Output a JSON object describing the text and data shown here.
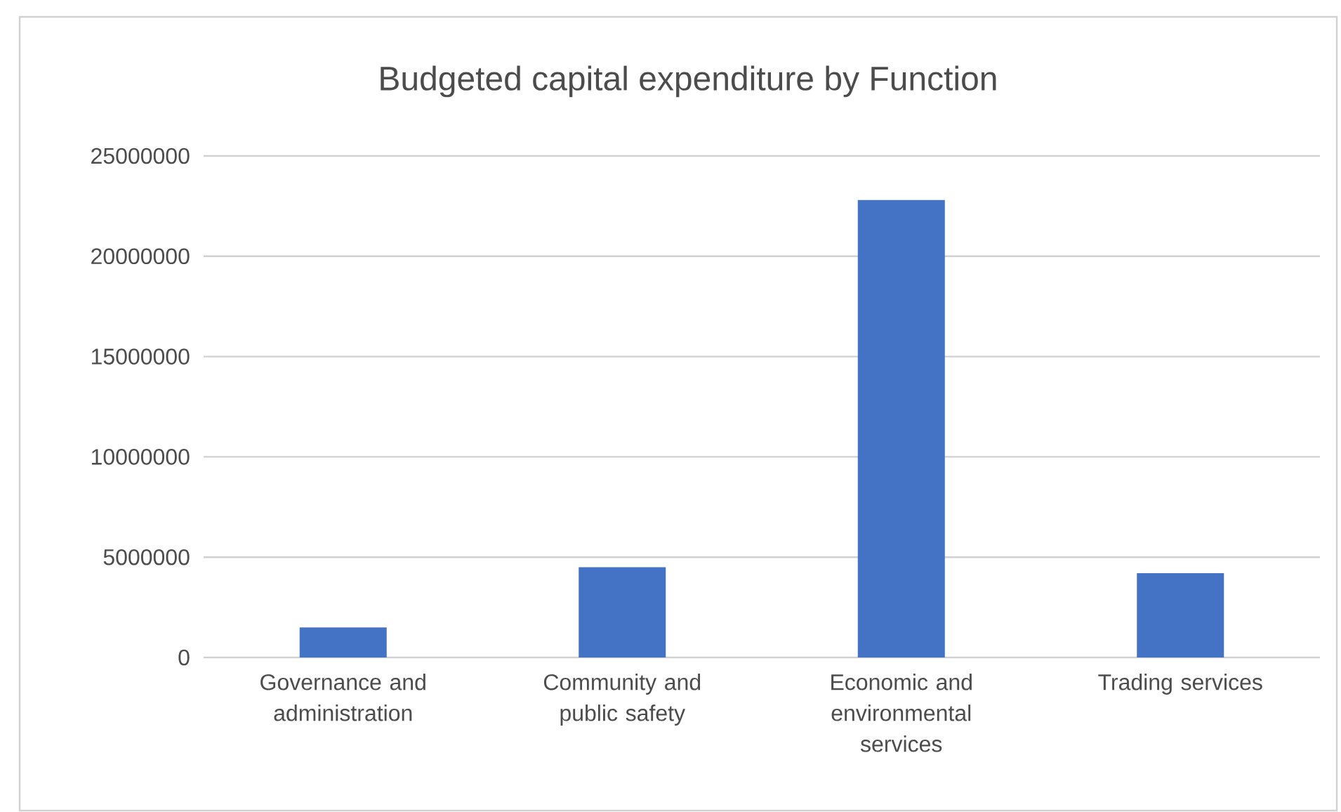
{
  "chart_data": {
    "type": "bar",
    "title": "Budgeted capital expenditure by Function",
    "categories": [
      "Governance and administration",
      "Community and public safety",
      "Economic and environmental services",
      "Trading services"
    ],
    "values": [
      1500000,
      4500000,
      22800000,
      4200000
    ],
    "color": "#4472c4",
    "ylim": [
      0,
      25000000
    ],
    "yticks": [
      0,
      5000000,
      10000000,
      15000000,
      20000000,
      25000000
    ],
    "grid": "y"
  }
}
